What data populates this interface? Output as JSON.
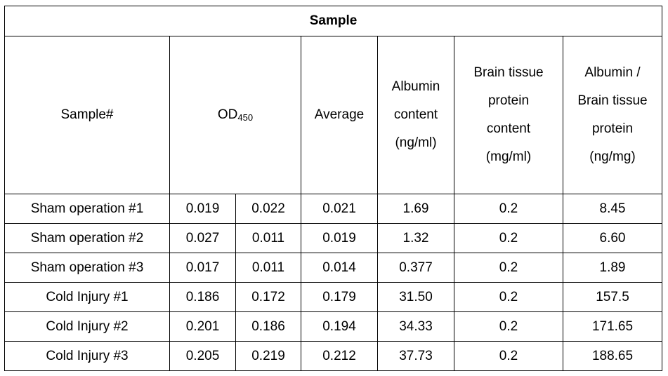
{
  "table": {
    "title": "Sample",
    "headers": {
      "sample": "Sample#",
      "od_main": "OD",
      "od_sub": "450",
      "average": "Average",
      "albumin_content": [
        "Albumin",
        "content",
        "(ng/ml)"
      ],
      "brain_protein": [
        "Brain tissue",
        "protein",
        "content",
        "(mg/ml)"
      ],
      "ratio": [
        "Albumin /",
        "Brain tissue",
        "protein",
        "(ng/mg)"
      ]
    },
    "rows": [
      {
        "sample": "Sham operation #1",
        "od1": "0.019",
        "od2": "0.022",
        "average": "0.021",
        "albumin": "1.69",
        "protein": "0.2",
        "ratio": "8.45"
      },
      {
        "sample": "Sham operation #2",
        "od1": "0.027",
        "od2": "0.011",
        "average": "0.019",
        "albumin": "1.32",
        "protein": "0.2",
        "ratio": "6.60"
      },
      {
        "sample": "Sham operation #3",
        "od1": "0.017",
        "od2": "0.011",
        "average": "0.014",
        "albumin": "0.377",
        "protein": "0.2",
        "ratio": "1.89"
      },
      {
        "sample": "Cold Injury #1",
        "od1": "0.186",
        "od2": "0.172",
        "average": "0.179",
        "albumin": "31.50",
        "protein": "0.2",
        "ratio": "157.5"
      },
      {
        "sample": "Cold Injury #2",
        "od1": "0.201",
        "od2": "0.186",
        "average": "0.194",
        "albumin": "34.33",
        "protein": "0.2",
        "ratio": "171.65"
      },
      {
        "sample": "Cold Injury #3",
        "od1": "0.205",
        "od2": "0.219",
        "average": "0.212",
        "albumin": "37.73",
        "protein": "0.2",
        "ratio": "188.65"
      }
    ]
  }
}
